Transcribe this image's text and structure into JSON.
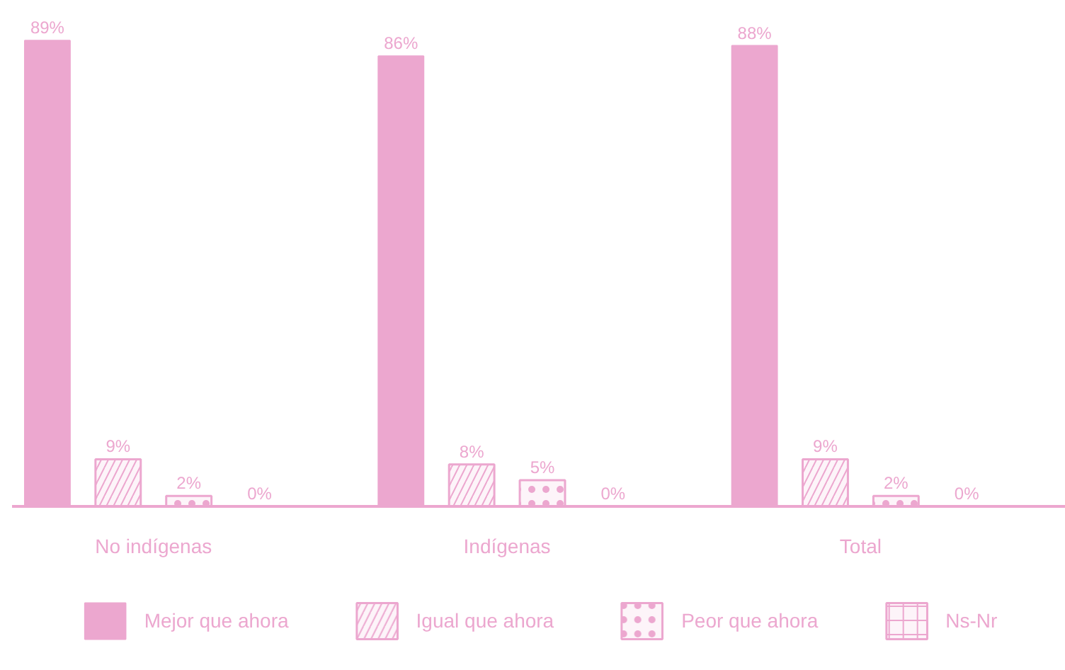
{
  "chart_data": {
    "type": "bar",
    "categories": [
      "No indígenas",
      "Indígenas",
      "Total"
    ],
    "series": [
      {
        "name": "Mejor que ahora",
        "color": "#eca7cf",
        "values": [
          89,
          86,
          88
        ],
        "value_labels": [
          "89%",
          "86%",
          "88%"
        ]
      },
      {
        "name": "Igual que ahora",
        "color": "#eca7cf",
        "values": [
          9,
          8,
          9
        ],
        "value_labels": [
          "9%",
          "8%",
          "9%"
        ]
      },
      {
        "name": "Peor que ahora",
        "color": "#eca7cf",
        "values": [
          2,
          5,
          2
        ],
        "value_labels": [
          "2%",
          "5%",
          "2%"
        ]
      },
      {
        "name": "Ns-Nr",
        "color": "#eca7cf",
        "values": [
          0,
          0,
          0
        ],
        "value_labels": [
          "0%",
          "0%",
          "0%"
        ]
      }
    ],
    "legend": "bottom"
  }
}
